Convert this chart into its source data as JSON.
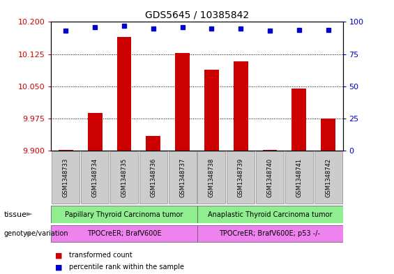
{
  "title": "GDS5645 / 10385842",
  "samples": [
    "GSM1348733",
    "GSM1348734",
    "GSM1348735",
    "GSM1348736",
    "GSM1348737",
    "GSM1348738",
    "GSM1348739",
    "GSM1348740",
    "GSM1348741",
    "GSM1348742"
  ],
  "transformed_count": [
    9.902,
    9.988,
    10.165,
    9.935,
    10.128,
    10.088,
    10.108,
    9.902,
    10.045,
    9.975
  ],
  "percentile_rank": [
    93,
    96,
    97,
    95,
    96,
    95,
    95,
    93,
    94,
    94
  ],
  "ylim_left": [
    9.9,
    10.2
  ],
  "ylim_right": [
    0,
    100
  ],
  "yticks_left": [
    9.9,
    9.975,
    10.05,
    10.125,
    10.2
  ],
  "yticks_right": [
    0,
    25,
    50,
    75,
    100
  ],
  "tissue_groups": [
    {
      "label": "Papillary Thyroid Carcinoma tumor",
      "start": 0,
      "end": 5,
      "color": "#90ee90"
    },
    {
      "label": "Anaplastic Thyroid Carcinoma tumor",
      "start": 5,
      "end": 10,
      "color": "#90ee90"
    }
  ],
  "genotype_groups": [
    {
      "label": "TPOCreER; BrafV600E",
      "start": 0,
      "end": 5,
      "color": "#ee82ee"
    },
    {
      "label": "TPOCreER; BrafV600E; p53 -/-",
      "start": 5,
      "end": 10,
      "color": "#ee82ee"
    }
  ],
  "bar_color": "#cc0000",
  "dot_color": "#0000cc",
  "background_color": "#ffffff",
  "plot_bg_color": "#ffffff",
  "tick_label_color_left": "#cc0000",
  "tick_label_color_right": "#0000cc",
  "grid_color": "#000000",
  "sample_box_color": "#cccccc",
  "fig_width": 5.65,
  "fig_height": 3.93,
  "dpi": 100
}
